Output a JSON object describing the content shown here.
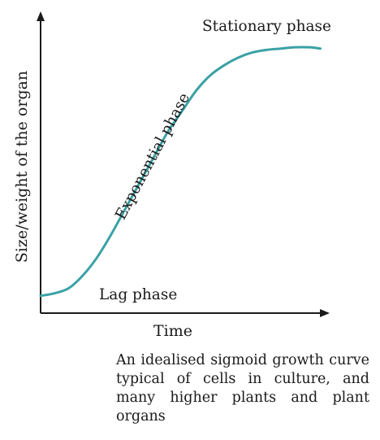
{
  "chart_data": {
    "type": "line",
    "title": "",
    "xlabel": "Time",
    "ylabel": "Size/weight of the organ",
    "xlim": [
      0,
      1
    ],
    "ylim": [
      0,
      1
    ],
    "grid": false,
    "legend": "none",
    "axis_ticks": false,
    "series": [
      {
        "color": "#3aa1a5",
        "x": [
          0.0,
          0.05,
          0.1,
          0.15,
          0.2,
          0.25,
          0.3,
          0.35,
          0.4,
          0.45,
          0.5,
          0.55,
          0.6,
          0.65,
          0.7,
          0.75,
          0.8,
          0.85,
          0.9,
          0.95,
          0.99
        ],
        "y": [
          0.02,
          0.03,
          0.05,
          0.1,
          0.17,
          0.26,
          0.36,
          0.46,
          0.56,
          0.66,
          0.74,
          0.82,
          0.88,
          0.92,
          0.95,
          0.97,
          0.98,
          0.985,
          0.99,
          0.99,
          0.985
        ]
      }
    ],
    "annotations": {
      "lag": "Lag phase",
      "exponential": "Exponential phase",
      "stationary": "Stationary phase"
    },
    "caption": "An idealised sigmoid growth curve typical of cells in culture, and many higher plants and plant organs"
  }
}
